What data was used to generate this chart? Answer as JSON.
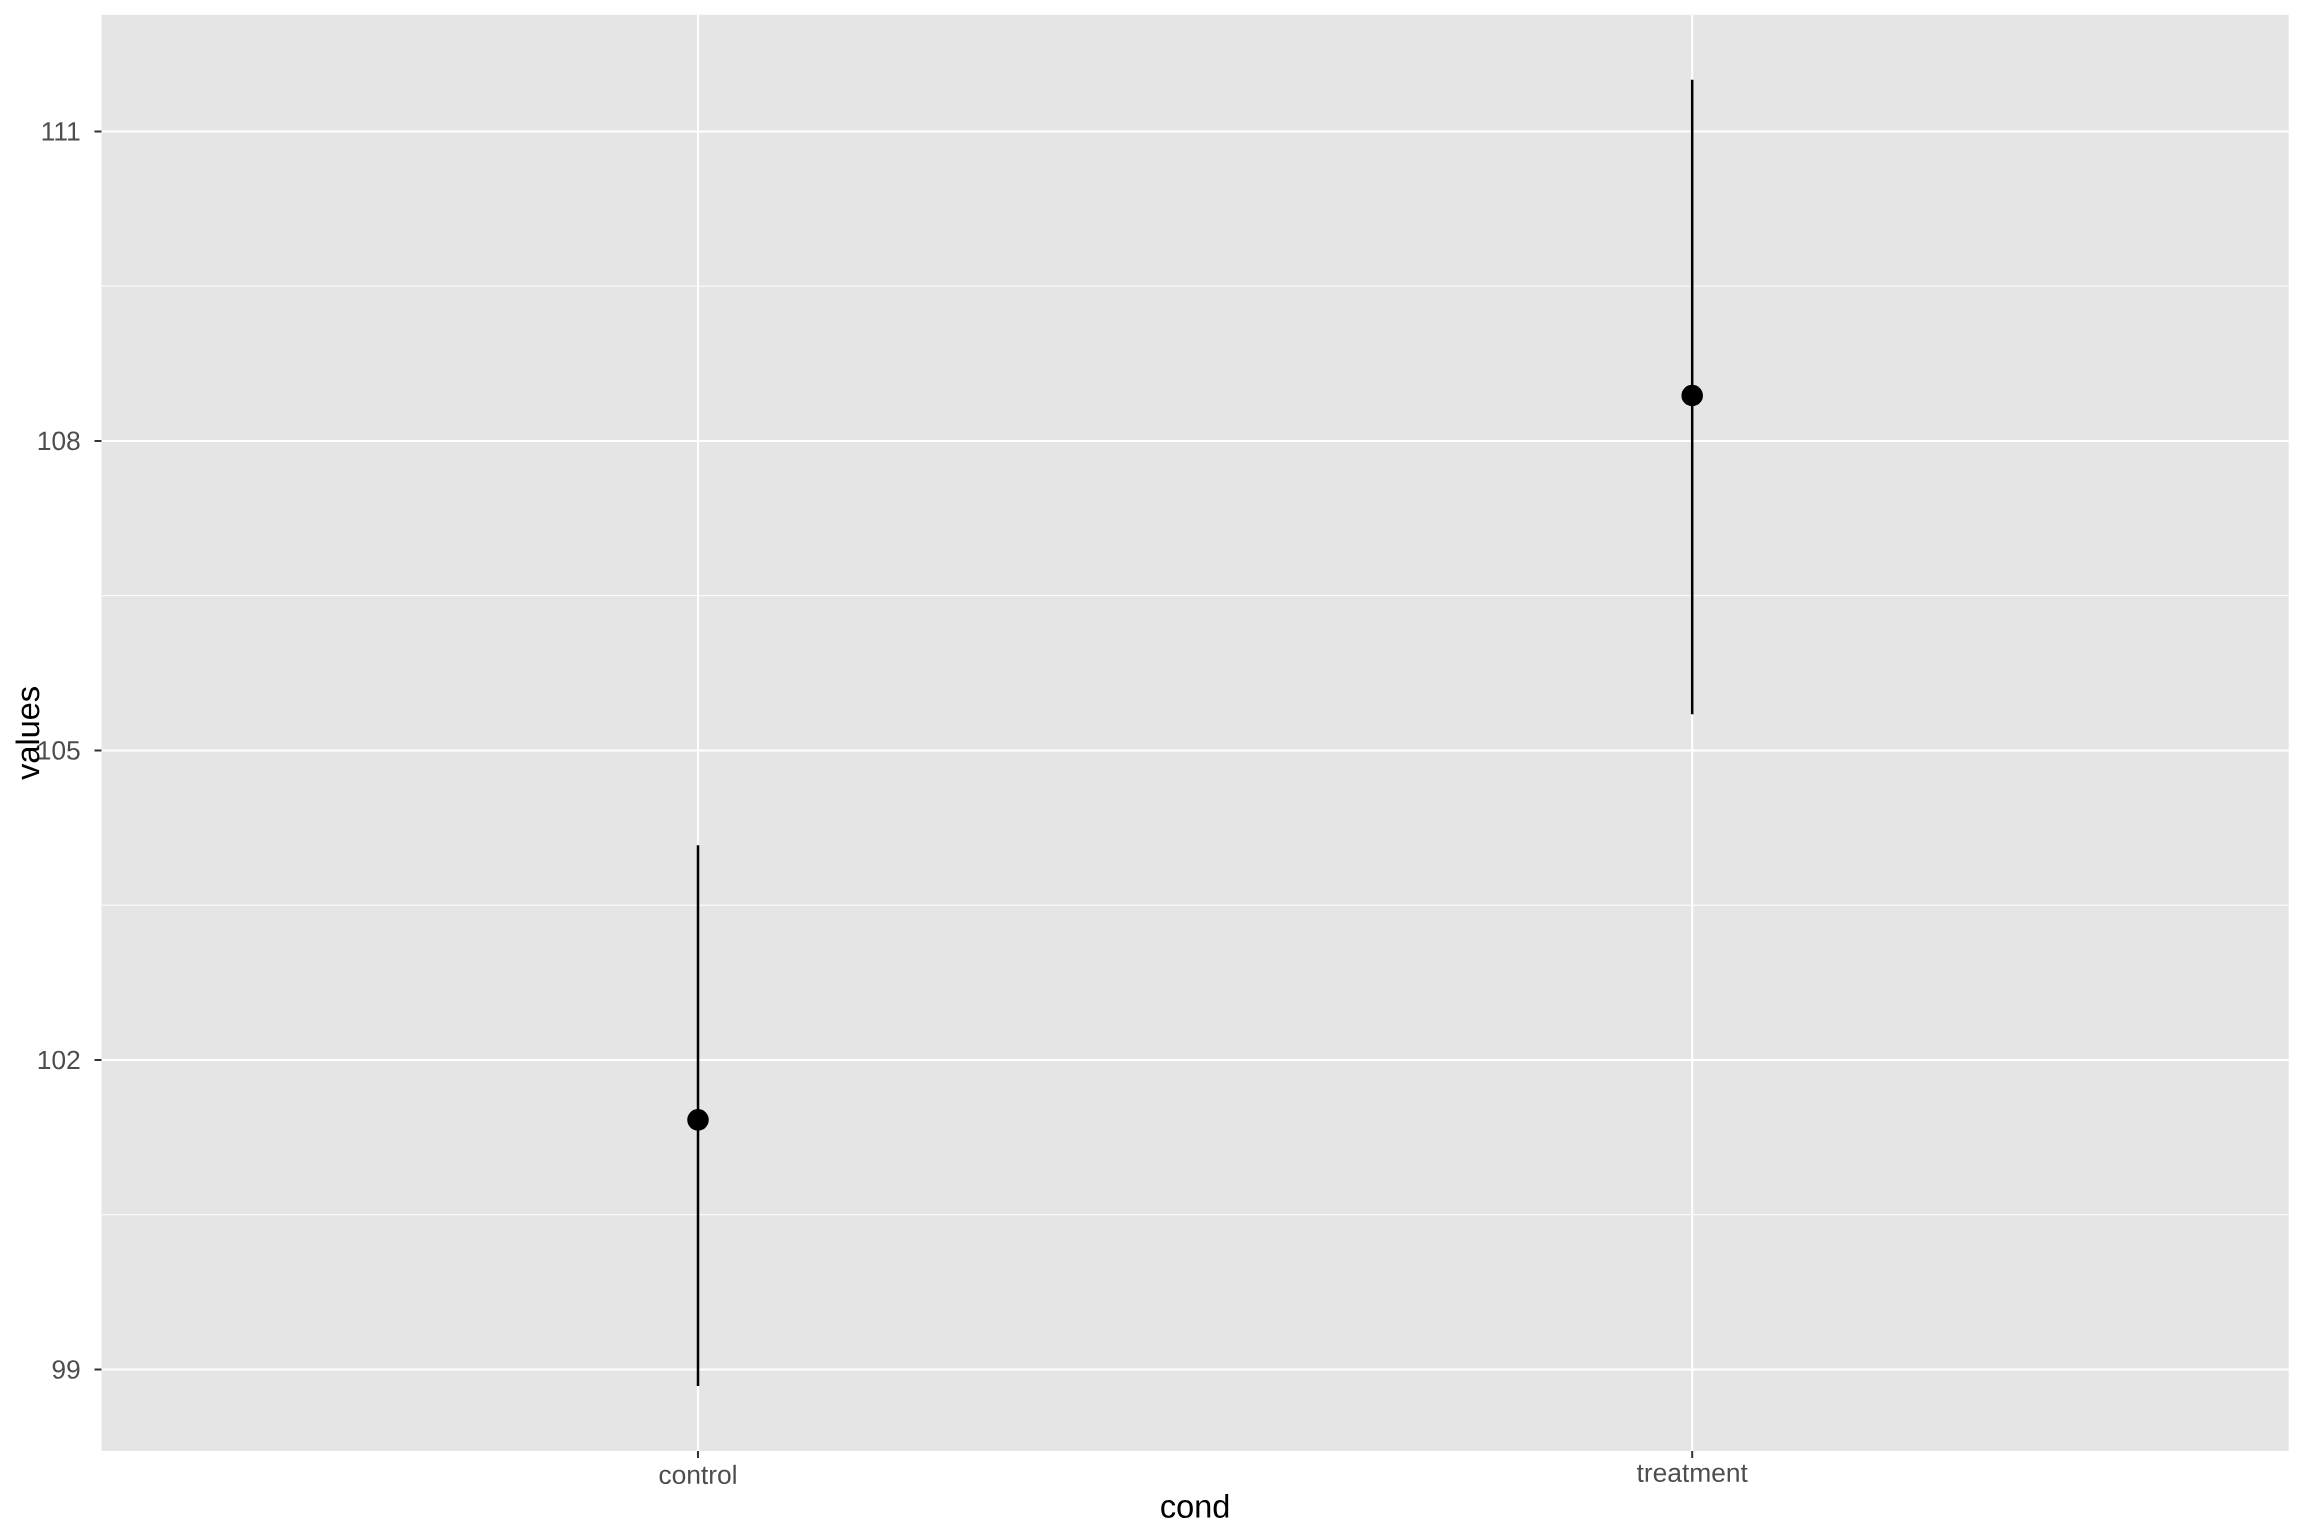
{
  "chart_data": {
    "type": "scatter",
    "xlabel": "cond",
    "ylabel": "values",
    "categories": [
      "control",
      "treatment"
    ],
    "values": [
      101.42,
      108.44
    ],
    "errors": [
      [
        98.84,
        104.08
      ],
      [
        105.35,
        111.5
      ]
    ],
    "color": "#000000",
    "marker": "circle",
    "ylim": [
      98.21,
      112.13
    ],
    "yticks": [
      99,
      {
        "value": 100.5,
        "label": null
      },
      102,
      {
        "value": 103.5,
        "label": null
      },
      105,
      {
        "value": 106.5,
        "label": null
      },
      108,
      {
        "value": 109.5,
        "label": null
      },
      111
    ],
    "grid": true
  }
}
